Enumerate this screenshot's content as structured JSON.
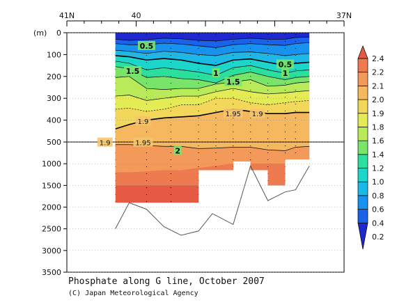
{
  "chart_data": {
    "type": "heatmap",
    "title": "Phosphate along G line, October 2007",
    "credit": "(C) Japan Meteorological Agency",
    "ylabel": "(m)",
    "x_ticks": [
      {
        "label": "41N",
        "lat": 41
      },
      {
        "label": "40",
        "lat": 40
      },
      {
        "label": "37N",
        "lat": 37
      }
    ],
    "xlim": [
      41,
      37
    ],
    "y_ticks": [
      0,
      100,
      200,
      300,
      400,
      500,
      1000,
      1500,
      2000,
      2500,
      3000,
      3500
    ],
    "y_axis_break_depth": 500,
    "colorbar": {
      "levels": [
        0.2,
        0.4,
        0.6,
        0.8,
        1.0,
        1.2,
        1.4,
        1.6,
        1.8,
        1.9,
        2.0,
        2.1,
        2.2,
        2.4
      ],
      "colors": [
        "#1f28ce",
        "#1a62ea",
        "#1792ee",
        "#1bb9e8",
        "#1cd6cc",
        "#2bdf9e",
        "#78e56a",
        "#b8ea5a",
        "#e4ec55",
        "#f2d75a",
        "#f6b85e",
        "#f39a5a",
        "#ee7a50",
        "#e65a43"
      ]
    },
    "stations_lat": [
      40.3,
      39.85,
      39.5,
      39.1,
      38.85,
      38.6,
      38.35,
      38.1,
      37.85,
      37.7
    ],
    "contour_labels": [
      {
        "text": "0.5",
        "lat": 39.85,
        "depth": 60
      },
      {
        "text": "0.5",
        "lat": 37.85,
        "depth": 145
      },
      {
        "text": "1",
        "lat": 38.85,
        "depth": 185
      },
      {
        "text": "1",
        "lat": 37.85,
        "depth": 185
      },
      {
        "text": "1.5",
        "lat": 40.05,
        "depth": 175
      },
      {
        "text": "1.5",
        "lat": 38.6,
        "depth": 225
      },
      {
        "text": "1.9",
        "lat": 39.9,
        "depth": 405
      },
      {
        "text": "1.9",
        "lat": 38.25,
        "depth": 370
      },
      {
        "text": "1.95",
        "lat": 38.6,
        "depth": 370
      },
      {
        "text": "1.9",
        "lat": 40.45,
        "depth": 510
      },
      {
        "text": "1.95",
        "lat": 39.9,
        "depth": 510
      },
      {
        "text": "2",
        "lat": 39.4,
        "depth": 700
      }
    ],
    "bottom_profile": [
      {
        "lat": 40.3,
        "depth": 2500
      },
      {
        "lat": 40.1,
        "depth": 1900
      },
      {
        "lat": 39.85,
        "depth": 2050
      },
      {
        "lat": 39.6,
        "depth": 2450
      },
      {
        "lat": 39.35,
        "depth": 2650
      },
      {
        "lat": 39.1,
        "depth": 2550
      },
      {
        "lat": 38.9,
        "depth": 2150
      },
      {
        "lat": 38.6,
        "depth": 2400
      },
      {
        "lat": 38.35,
        "depth": 1050
      },
      {
        "lat": 38.1,
        "depth": 1850
      },
      {
        "lat": 37.85,
        "depth": 1650
      },
      {
        "lat": 37.7,
        "depth": 1600
      },
      {
        "lat": 37.5,
        "depth": 1050
      }
    ]
  }
}
